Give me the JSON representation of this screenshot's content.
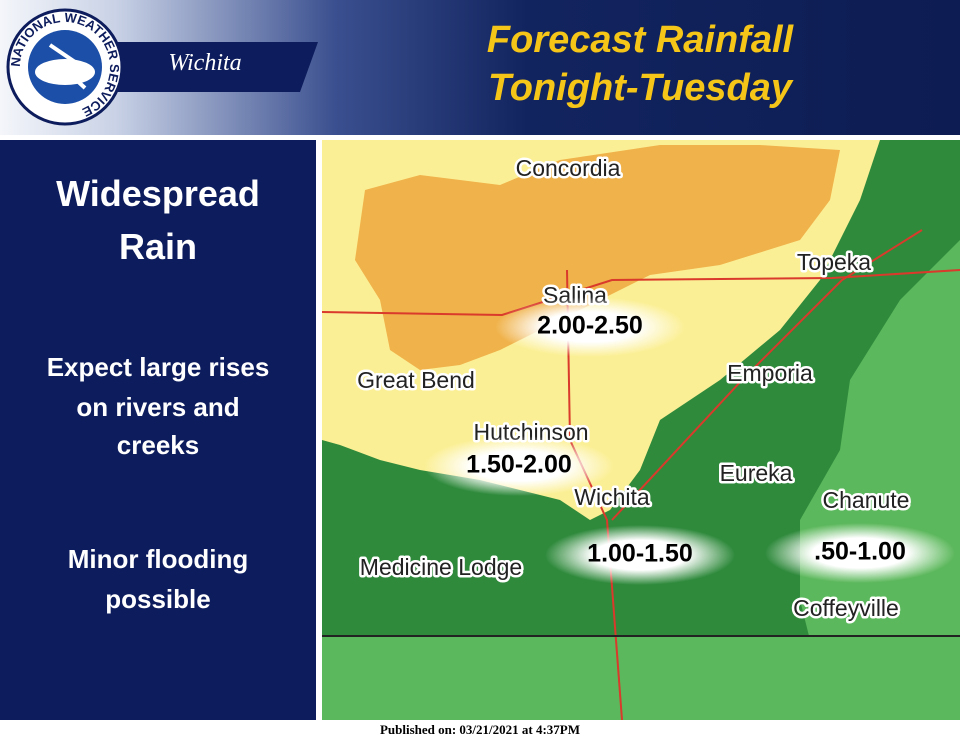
{
  "header": {
    "logo_text": "NATIONAL WEATHER SERVICE",
    "office": "Wichita",
    "title_lines": [
      "Forecast Rainfall",
      "Tonight-Tuesday"
    ]
  },
  "sidebar": {
    "headline": [
      "Widespread",
      "Rain"
    ],
    "notes": [
      [
        "Expect large rises",
        "on rivers and",
        "creeks"
      ],
      [
        "Minor flooding",
        "possible"
      ]
    ]
  },
  "map": {
    "cities": [
      "Concordia",
      "Salina",
      "Topeka",
      "Great Bend",
      "Emporia",
      "Hutchinson",
      "Eureka",
      "Wichita",
      "Chanute",
      "Medicine Lodge",
      "Coffeyville"
    ],
    "rainfall_labels": [
      "2.00-2.50",
      "1.50-2.00",
      "1.00-1.50",
      ".50-1.00"
    ]
  },
  "footer": "Published on: 03/21/2021 at 4:37PM"
}
